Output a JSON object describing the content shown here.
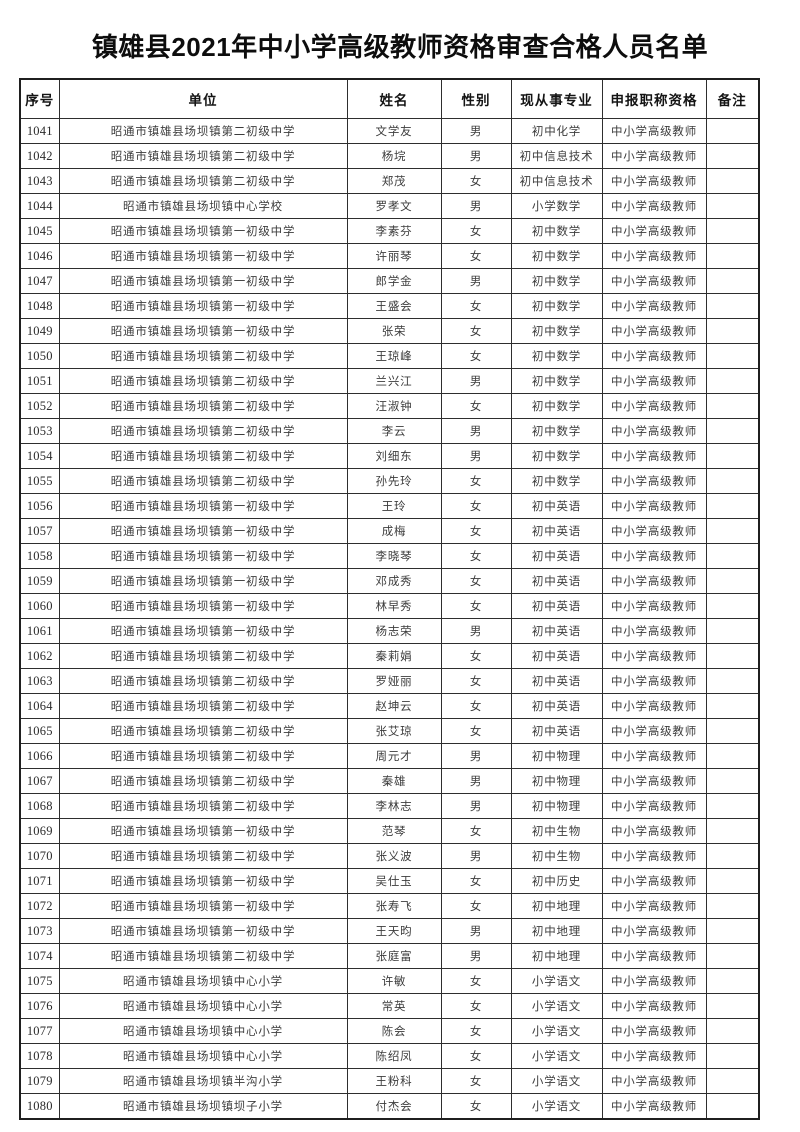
{
  "title": "镇雄县2021年中小学高级教师资格审查合格人员名单",
  "table": {
    "headers": [
      "序号",
      "单位",
      "姓名",
      "性别",
      "现从事专业",
      "申报职称资格",
      "备注"
    ],
    "rows": [
      {
        "id": "1041",
        "unit": "昭通市镇雄县场坝镇第二初级中学",
        "name": "文学友",
        "gender": "男",
        "subject": "初中化学",
        "title": "中小学高级教师",
        "note": ""
      },
      {
        "id": "1042",
        "unit": "昭通市镇雄县场坝镇第二初级中学",
        "name": "杨垸",
        "gender": "男",
        "subject": "初中信息技术",
        "title": "中小学高级教师",
        "note": ""
      },
      {
        "id": "1043",
        "unit": "昭通市镇雄县场坝镇第二初级中学",
        "name": "郑茂",
        "gender": "女",
        "subject": "初中信息技术",
        "title": "中小学高级教师",
        "note": ""
      },
      {
        "id": "1044",
        "unit": "昭通市镇雄县场坝镇中心学校",
        "name": "罗孝文",
        "gender": "男",
        "subject": "小学数学",
        "title": "中小学高级教师",
        "note": ""
      },
      {
        "id": "1045",
        "unit": "昭通市镇雄县场坝镇第一初级中学",
        "name": "李素芬",
        "gender": "女",
        "subject": "初中数学",
        "title": "中小学高级教师",
        "note": ""
      },
      {
        "id": "1046",
        "unit": "昭通市镇雄县场坝镇第一初级中学",
        "name": "许丽琴",
        "gender": "女",
        "subject": "初中数学",
        "title": "中小学高级教师",
        "note": ""
      },
      {
        "id": "1047",
        "unit": "昭通市镇雄县场坝镇第一初级中学",
        "name": "郎学金",
        "gender": "男",
        "subject": "初中数学",
        "title": "中小学高级教师",
        "note": ""
      },
      {
        "id": "1048",
        "unit": "昭通市镇雄县场坝镇第一初级中学",
        "name": "王盛会",
        "gender": "女",
        "subject": "初中数学",
        "title": "中小学高级教师",
        "note": ""
      },
      {
        "id": "1049",
        "unit": "昭通市镇雄县场坝镇第一初级中学",
        "name": "张荣",
        "gender": "女",
        "subject": "初中数学",
        "title": "中小学高级教师",
        "note": ""
      },
      {
        "id": "1050",
        "unit": "昭通市镇雄县场坝镇第二初级中学",
        "name": "王琼峰",
        "gender": "女",
        "subject": "初中数学",
        "title": "中小学高级教师",
        "note": ""
      },
      {
        "id": "1051",
        "unit": "昭通市镇雄县场坝镇第二初级中学",
        "name": "兰兴江",
        "gender": "男",
        "subject": "初中数学",
        "title": "中小学高级教师",
        "note": ""
      },
      {
        "id": "1052",
        "unit": "昭通市镇雄县场坝镇第二初级中学",
        "name": "汪淑钟",
        "gender": "女",
        "subject": "初中数学",
        "title": "中小学高级教师",
        "note": ""
      },
      {
        "id": "1053",
        "unit": "昭通市镇雄县场坝镇第二初级中学",
        "name": "李云",
        "gender": "男",
        "subject": "初中数学",
        "title": "中小学高级教师",
        "note": ""
      },
      {
        "id": "1054",
        "unit": "昭通市镇雄县场坝镇第二初级中学",
        "name": "刘细东",
        "gender": "男",
        "subject": "初中数学",
        "title": "中小学高级教师",
        "note": ""
      },
      {
        "id": "1055",
        "unit": "昭通市镇雄县场坝镇第二初级中学",
        "name": "孙先玲",
        "gender": "女",
        "subject": "初中数学",
        "title": "中小学高级教师",
        "note": ""
      },
      {
        "id": "1056",
        "unit": "昭通市镇雄县场坝镇第一初级中学",
        "name": "王玲",
        "gender": "女",
        "subject": "初中英语",
        "title": "中小学高级教师",
        "note": ""
      },
      {
        "id": "1057",
        "unit": "昭通市镇雄县场坝镇第一初级中学",
        "name": "成梅",
        "gender": "女",
        "subject": "初中英语",
        "title": "中小学高级教师",
        "note": ""
      },
      {
        "id": "1058",
        "unit": "昭通市镇雄县场坝镇第一初级中学",
        "name": "李晓琴",
        "gender": "女",
        "subject": "初中英语",
        "title": "中小学高级教师",
        "note": ""
      },
      {
        "id": "1059",
        "unit": "昭通市镇雄县场坝镇第一初级中学",
        "name": "邓成秀",
        "gender": "女",
        "subject": "初中英语",
        "title": "中小学高级教师",
        "note": ""
      },
      {
        "id": "1060",
        "unit": "昭通市镇雄县场坝镇第一初级中学",
        "name": "林早秀",
        "gender": "女",
        "subject": "初中英语",
        "title": "中小学高级教师",
        "note": ""
      },
      {
        "id": "1061",
        "unit": "昭通市镇雄县场坝镇第一初级中学",
        "name": "杨志荣",
        "gender": "男",
        "subject": "初中英语",
        "title": "中小学高级教师",
        "note": ""
      },
      {
        "id": "1062",
        "unit": "昭通市镇雄县场坝镇第二初级中学",
        "name": "秦莉娟",
        "gender": "女",
        "subject": "初中英语",
        "title": "中小学高级教师",
        "note": ""
      },
      {
        "id": "1063",
        "unit": "昭通市镇雄县场坝镇第二初级中学",
        "name": "罗娅丽",
        "gender": "女",
        "subject": "初中英语",
        "title": "中小学高级教师",
        "note": ""
      },
      {
        "id": "1064",
        "unit": "昭通市镇雄县场坝镇第二初级中学",
        "name": "赵坤云",
        "gender": "女",
        "subject": "初中英语",
        "title": "中小学高级教师",
        "note": ""
      },
      {
        "id": "1065",
        "unit": "昭通市镇雄县场坝镇第二初级中学",
        "name": "张艾琼",
        "gender": "女",
        "subject": "初中英语",
        "title": "中小学高级教师",
        "note": ""
      },
      {
        "id": "1066",
        "unit": "昭通市镇雄县场坝镇第二初级中学",
        "name": "周元才",
        "gender": "男",
        "subject": "初中物理",
        "title": "中小学高级教师",
        "note": ""
      },
      {
        "id": "1067",
        "unit": "昭通市镇雄县场坝镇第二初级中学",
        "name": "秦雄",
        "gender": "男",
        "subject": "初中物理",
        "title": "中小学高级教师",
        "note": ""
      },
      {
        "id": "1068",
        "unit": "昭通市镇雄县场坝镇第二初级中学",
        "name": "李林志",
        "gender": "男",
        "subject": "初中物理",
        "title": "中小学高级教师",
        "note": ""
      },
      {
        "id": "1069",
        "unit": "昭通市镇雄县场坝镇第一初级中学",
        "name": "范琴",
        "gender": "女",
        "subject": "初中生物",
        "title": "中小学高级教师",
        "note": ""
      },
      {
        "id": "1070",
        "unit": "昭通市镇雄县场坝镇第二初级中学",
        "name": "张义波",
        "gender": "男",
        "subject": "初中生物",
        "title": "中小学高级教师",
        "note": ""
      },
      {
        "id": "1071",
        "unit": "昭通市镇雄县场坝镇第一初级中学",
        "name": "吴仕玉",
        "gender": "女",
        "subject": "初中历史",
        "title": "中小学高级教师",
        "note": ""
      },
      {
        "id": "1072",
        "unit": "昭通市镇雄县场坝镇第一初级中学",
        "name": "张寿飞",
        "gender": "女",
        "subject": "初中地理",
        "title": "中小学高级教师",
        "note": ""
      },
      {
        "id": "1073",
        "unit": "昭通市镇雄县场坝镇第一初级中学",
        "name": "王天昀",
        "gender": "男",
        "subject": "初中地理",
        "title": "中小学高级教师",
        "note": ""
      },
      {
        "id": "1074",
        "unit": "昭通市镇雄县场坝镇第二初级中学",
        "name": "张庭富",
        "gender": "男",
        "subject": "初中地理",
        "title": "中小学高级教师",
        "note": ""
      },
      {
        "id": "1075",
        "unit": "昭通市镇雄县场坝镇中心小学",
        "name": "许敏",
        "gender": "女",
        "subject": "小学语文",
        "title": "中小学高级教师",
        "note": ""
      },
      {
        "id": "1076",
        "unit": "昭通市镇雄县场坝镇中心小学",
        "name": "常英",
        "gender": "女",
        "subject": "小学语文",
        "title": "中小学高级教师",
        "note": ""
      },
      {
        "id": "1077",
        "unit": "昭通市镇雄县场坝镇中心小学",
        "name": "陈会",
        "gender": "女",
        "subject": "小学语文",
        "title": "中小学高级教师",
        "note": ""
      },
      {
        "id": "1078",
        "unit": "昭通市镇雄县场坝镇中心小学",
        "name": "陈绍凤",
        "gender": "女",
        "subject": "小学语文",
        "title": "中小学高级教师",
        "note": ""
      },
      {
        "id": "1079",
        "unit": "昭通市镇雄县场坝镇半沟小学",
        "name": "王粉科",
        "gender": "女",
        "subject": "小学语文",
        "title": "中小学高级教师",
        "note": ""
      },
      {
        "id": "1080",
        "unit": "昭通市镇雄县场坝镇坝子小学",
        "name": "付杰会",
        "gender": "女",
        "subject": "小学语文",
        "title": "中小学高级教师",
        "note": ""
      }
    ]
  }
}
